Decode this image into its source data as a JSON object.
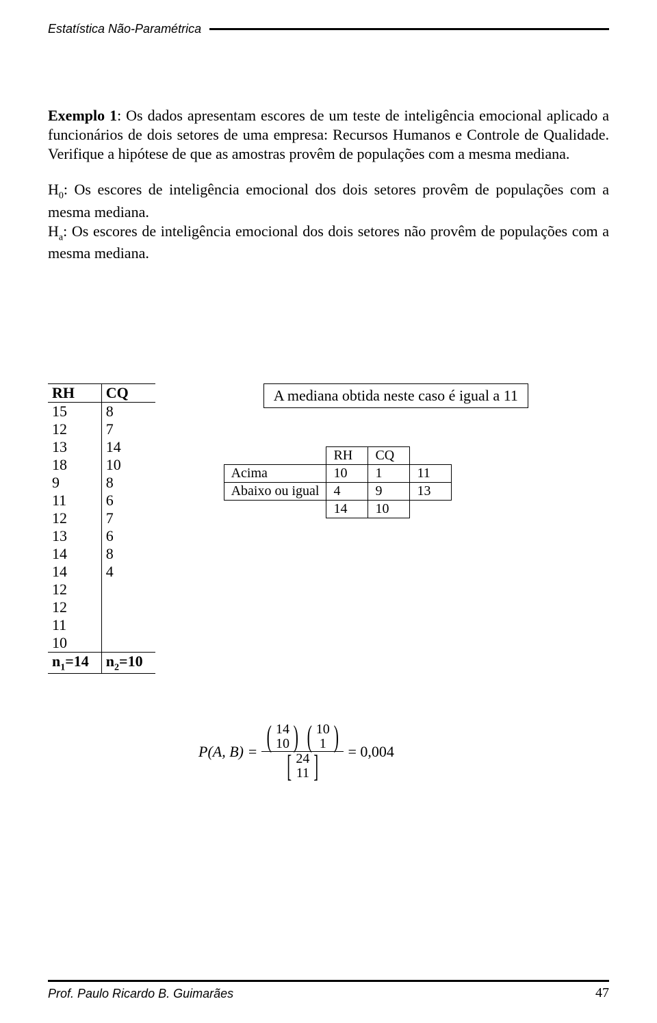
{
  "header": {
    "running_title": "Estatística Não-Paramétrica"
  },
  "footer": {
    "author": "Prof. Paulo Ricardo B. Guimarães",
    "page": "47"
  },
  "text": {
    "example_label": "Exemplo 1",
    "example_body": ": Os dados apresentam escores de um teste de inteligência emocional aplicado a funcionários de dois setores de uma empresa: Recursos Humanos e Controle de Qualidade. Verifique a hipótese de que as amostras provêm de populações com a mesma mediana.",
    "h0_label": "H",
    "h0_sub": "0",
    "h0_body": ": Os escores de inteligência emocional dos dois setores provêm de populações com a mesma mediana.",
    "ha_label": "H",
    "ha_sub": "a",
    "ha_body": ": Os escores de inteligência emocional dos dois setores não provêm de populações com a mesma mediana.",
    "median_box": "A mediana obtida neste caso é igual a 11"
  },
  "data_table": {
    "col1": "RH",
    "col2": "CQ",
    "rows": [
      [
        "15",
        "8"
      ],
      [
        "12",
        "7"
      ],
      [
        "13",
        "14"
      ],
      [
        "18",
        "10"
      ],
      [
        "9",
        "8"
      ],
      [
        "11",
        "6"
      ],
      [
        "12",
        "7"
      ],
      [
        "13",
        "6"
      ],
      [
        "14",
        "8"
      ],
      [
        "14",
        "4"
      ],
      [
        "12",
        ""
      ],
      [
        "12",
        ""
      ],
      [
        "11",
        ""
      ],
      [
        "10",
        ""
      ]
    ],
    "total1_label": "n",
    "total1_sub": "1",
    "total1_val": "=14",
    "total2_label": "n",
    "total2_sub": "2",
    "total2_val": "=10"
  },
  "ctable": {
    "col_rh": "RH",
    "col_cq": "CQ",
    "row_above": "Acima",
    "row_below": "Abaixo ou igual",
    "cells": {
      "above_rh": "10",
      "above_cq": "1",
      "above_tot": "11",
      "below_rh": "4",
      "below_cq": "9",
      "below_tot": "13",
      "tot_rh": "14",
      "tot_cq": "10"
    }
  },
  "formula": {
    "lhs": "P(A, B) =",
    "b1_top": "14",
    "b1_bot": "10",
    "b2_top": "10",
    "b2_bot": "1",
    "den_top": "24",
    "den_bot": "11",
    "rhs": "= 0,004"
  }
}
